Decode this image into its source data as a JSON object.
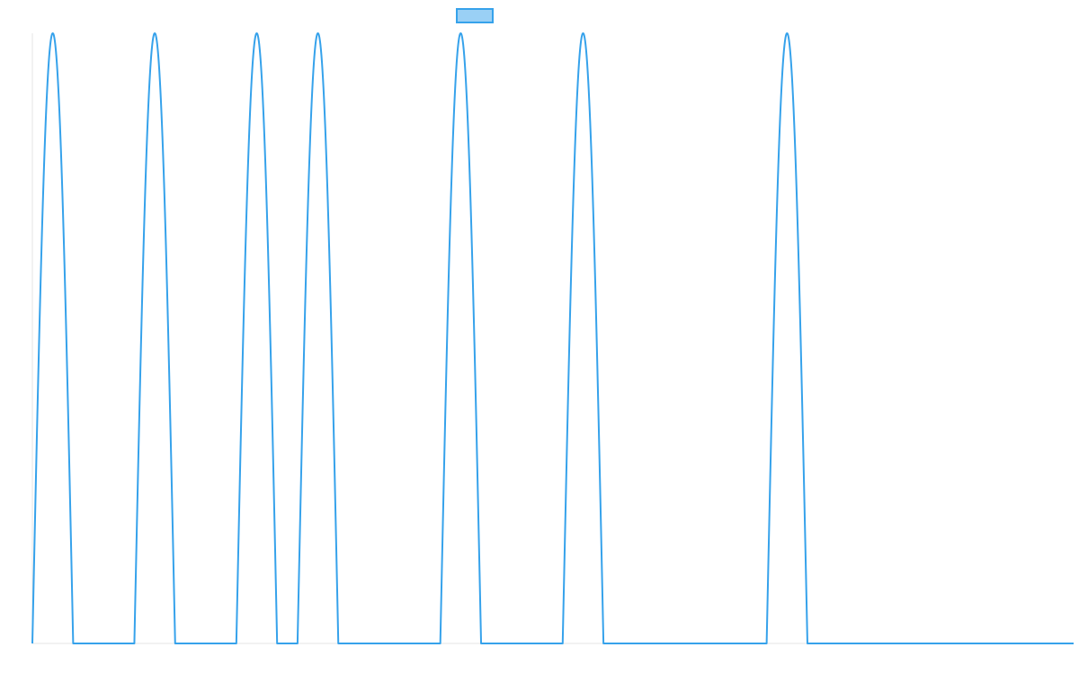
{
  "colors": {
    "series_stroke": "#36a2eb",
    "series_fill": "#9ad0f5",
    "axis": "#e6e6e6"
  },
  "chart_data": {
    "type": "line",
    "title": "",
    "xlabel": "",
    "ylabel": "",
    "grid": false,
    "legend": {
      "position": "top",
      "show_label": false
    },
    "xlim": [
      0,
      1021
    ],
    "ylim": [
      0,
      1
    ],
    "series": [
      {
        "name": "",
        "pulse_half_width": 20,
        "peaks_x": [
          20,
          120,
          220,
          280,
          420,
          540,
          740
        ]
      }
    ]
  }
}
